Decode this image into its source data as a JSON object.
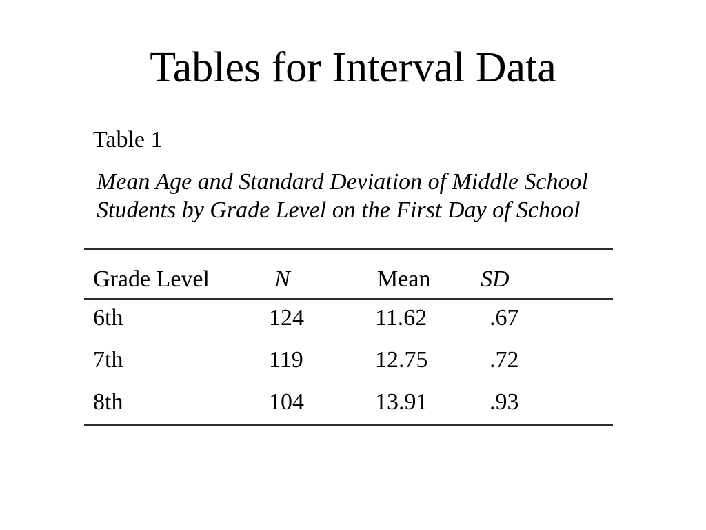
{
  "slide": {
    "title": "Tables for Interval Data",
    "table_label": "Table 1",
    "caption_line1": "Mean Age and Standard Deviation of Middle School",
    "caption_line2": "Students by Grade Level on the First Day of School",
    "table": {
      "headers": [
        "Grade Level",
        "N",
        "Mean",
        "SD"
      ],
      "rows": [
        [
          "6th",
          "124",
          "11.62",
          ".67"
        ],
        [
          "7th",
          "119",
          "12.75",
          ".72"
        ],
        [
          "8th",
          "104",
          "13.91",
          ".93"
        ]
      ]
    }
  },
  "colors": {
    "background": "#ffffff",
    "text": "#000000",
    "rule": "#2b2b2b"
  }
}
